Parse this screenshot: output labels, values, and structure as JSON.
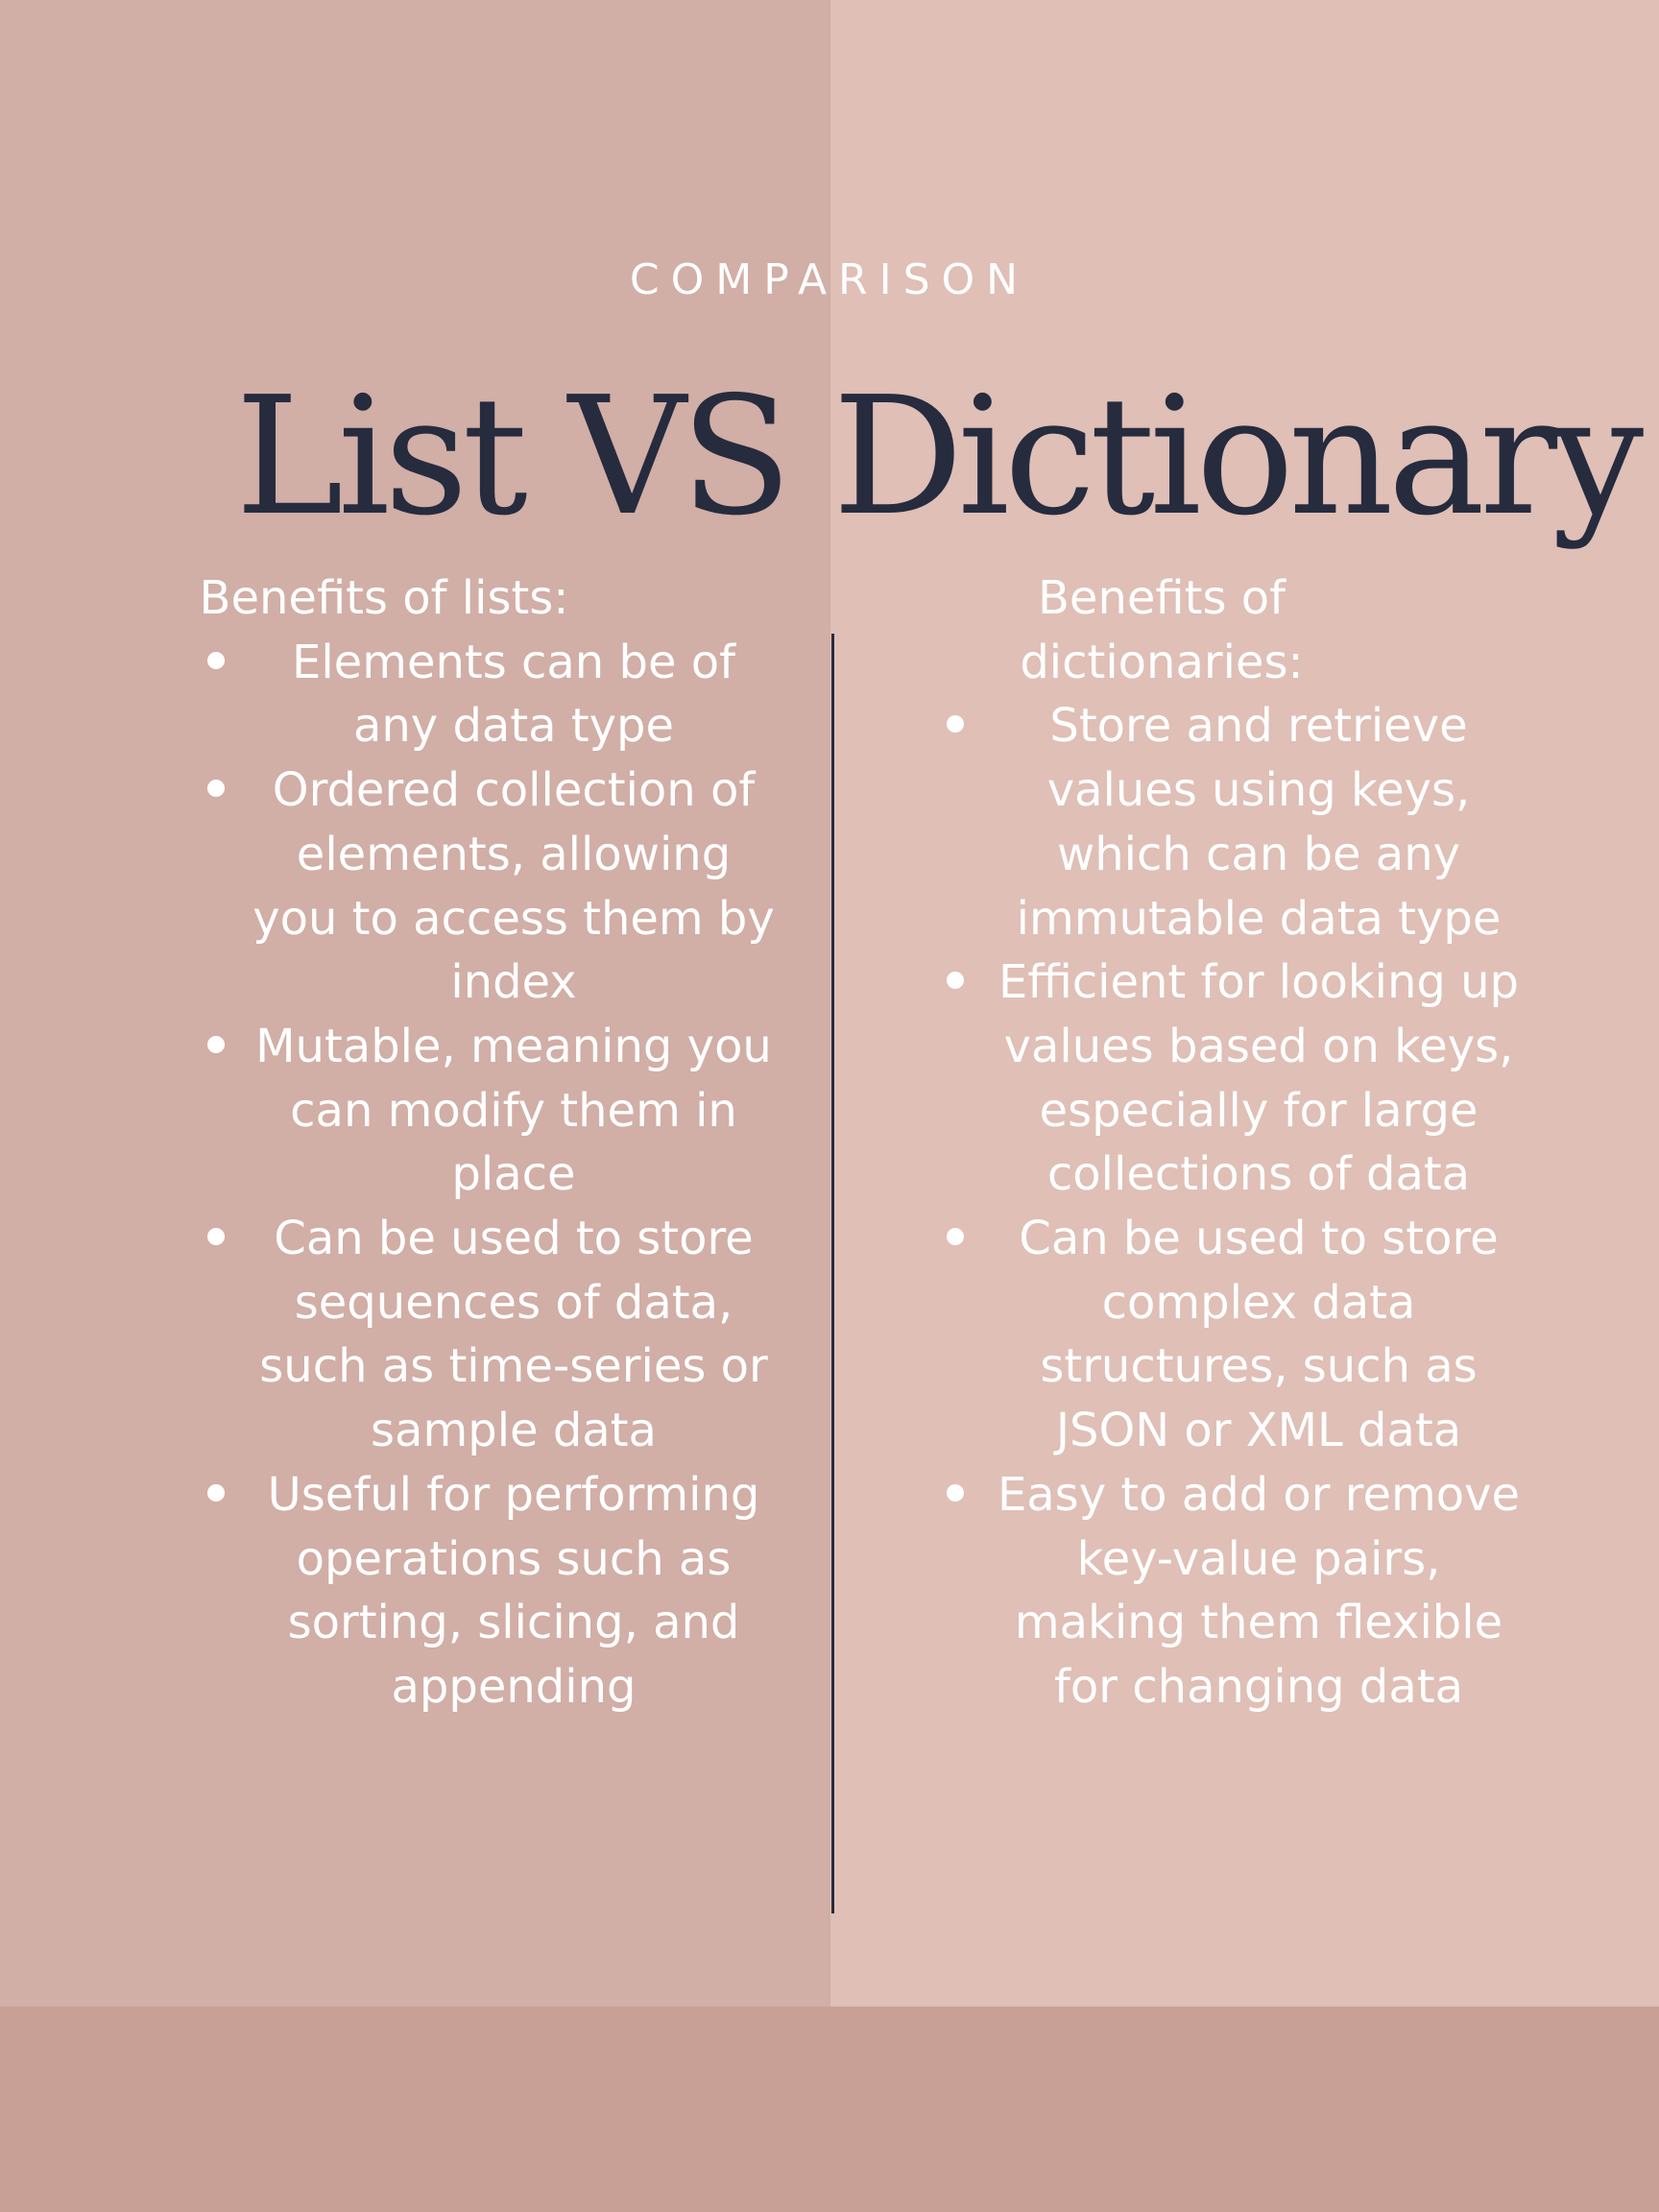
{
  "eyebrow": "COMPARISON",
  "title": "List  VS Dictionary",
  "colors": {
    "left_panel": "#d1aea6",
    "right_panel": "#dfbfb6",
    "footer_band": "#c8a095",
    "text": "#ffffff",
    "title": "#262b3e"
  },
  "lists": {
    "heading": "Benefits of lists:",
    "items": [
      "Elements can be of any data type",
      "Ordered collection of elements, allowing you to access them by index",
      "Mutable, meaning you can modify them in place",
      "Can be used to store sequences of data, such as time-series or sample data",
      "Useful for performing operations such as sorting, slicing, and appending"
    ]
  },
  "dictionaries": {
    "heading": "Benefits of dictionaries:",
    "items": [
      "Store and retrieve values using keys, which can be any immutable data type",
      "Efficient for looking up values based on keys, especially for large collections of data",
      "Can be used to store complex data structures, such as JSON or XML data",
      "Easy to add or remove key-value pairs, making them flexible for changing data"
    ]
  }
}
